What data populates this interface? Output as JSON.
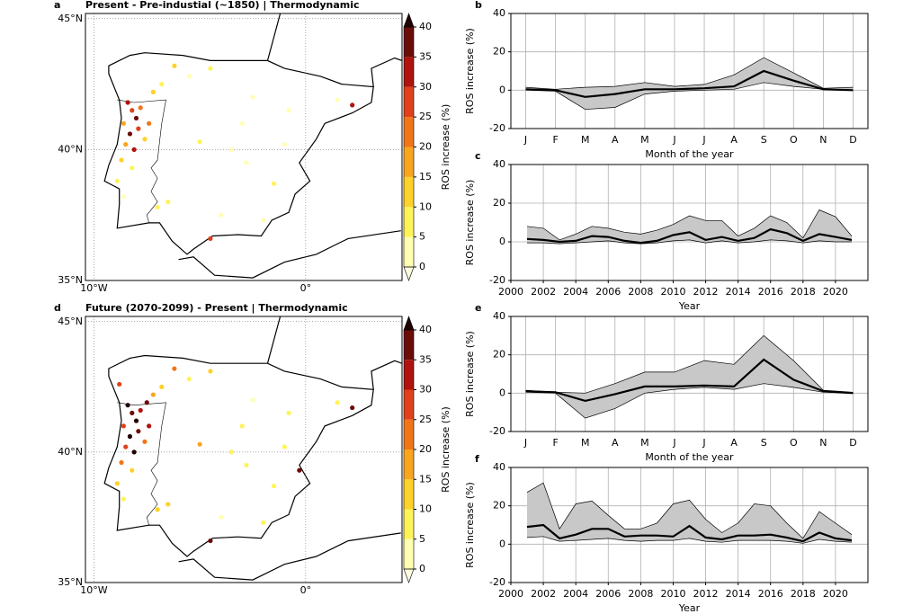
{
  "chart_data": [
    {
      "type": "map",
      "panel": "a",
      "title": "Present - Pre-industial (~1850) | Thermodynamic",
      "points": {
        "lon": [
          -8.4,
          -8.2,
          -8.0,
          -7.8,
          -8.6,
          -8.3,
          -7.9,
          -8.5,
          -8.1,
          -7.6,
          -8.7,
          -8.2,
          -7.4,
          -8.9,
          -8.6,
          -7.2,
          -6.8,
          -6.2,
          -5.5,
          -4.5,
          -3.5,
          -2.8,
          -1.5,
          -0.8,
          -6.5,
          -4.0,
          -2.0,
          -5.0,
          -3.0,
          -7.0,
          -4.5,
          -1.0,
          1.5,
          2.2,
          -2.5
        ],
        "lat": [
          41.8,
          41.5,
          41.2,
          41.6,
          41.0,
          40.6,
          40.8,
          40.2,
          40.0,
          40.4,
          39.6,
          39.3,
          41.0,
          38.8,
          38.2,
          42.2,
          42.5,
          43.2,
          42.8,
          43.1,
          40.0,
          39.5,
          38.7,
          41.5,
          38.0,
          37.5,
          37.3,
          40.3,
          41.0,
          37.8,
          36.6,
          40.2,
          41.9,
          41.7,
          42.0
        ],
        "values": [
          32,
          28,
          38,
          22,
          18,
          36,
          25,
          15,
          30,
          12,
          14,
          8,
          20,
          6,
          4,
          10,
          8,
          12,
          4,
          6,
          3,
          4,
          5,
          3,
          8,
          2,
          4,
          9,
          3,
          6,
          27,
          4,
          3,
          30,
          2
        ]
      },
      "xlim": [
        -10.4,
        4.55
      ],
      "ylim": [
        35,
        45.2
      ],
      "xticks": [
        {
          "value": -10,
          "label": "10°W"
        },
        {
          "value": 0,
          "label": "0°"
        }
      ],
      "yticks": [
        {
          "value": 35,
          "label": "35°N"
        },
        {
          "value": 40,
          "label": "40°N"
        },
        {
          "value": 45,
          "label": "45°N"
        }
      ],
      "colorbar": {
        "label": "ROS increase (%)",
        "ticks": [
          0,
          5,
          10,
          15,
          20,
          25,
          30,
          35,
          40
        ],
        "colors": [
          "#ffffb2",
          "#fff35a",
          "#fdd22a",
          "#f9a51e",
          "#f2751a",
          "#e0401a",
          "#b0120f",
          "#6b0c08"
        ],
        "under_color": "#ffffe0",
        "over_color": "#200000"
      }
    },
    {
      "type": "line",
      "panel": "b",
      "categories": [
        "J",
        "F",
        "M",
        "A",
        "M",
        "J",
        "J",
        "A",
        "S",
        "O",
        "N",
        "D"
      ],
      "values": [
        0.5,
        0,
        -3.5,
        -2,
        0.5,
        0.5,
        1,
        2,
        10,
        5,
        0.5,
        0
      ],
      "upper": [
        1.5,
        0.5,
        1.5,
        2,
        4,
        2,
        3,
        8,
        17,
        9,
        1,
        1.5
      ],
      "lower": [
        0,
        -0.5,
        -10,
        -9,
        -2,
        -0.5,
        0,
        0.5,
        4,
        2,
        0.5,
        0
      ],
      "ylim": [
        -20,
        40
      ],
      "yticks": [
        -20,
        0,
        20,
        40
      ],
      "ylabel": "ROS increase (%)",
      "xlabel": "Month of the year",
      "grid": true,
      "color": "#000000",
      "band_color": "#c8c8c8"
    },
    {
      "type": "line",
      "panel": "c",
      "x": [
        2001,
        2002,
        2003,
        2004,
        2005,
        2006,
        2007,
        2008,
        2009,
        2010,
        2011,
        2012,
        2013,
        2014,
        2015,
        2016,
        2017,
        2018,
        2019,
        2020,
        2021
      ],
      "values": [
        1.5,
        1,
        0,
        0.5,
        3,
        2.5,
        0.5,
        -0.5,
        0.5,
        3.5,
        5,
        1,
        2.5,
        0.5,
        2,
        6.5,
        4.5,
        0.5,
        4,
        2.5,
        1
      ],
      "upper": [
        8,
        7,
        1,
        4,
        8,
        7,
        5,
        4,
        6,
        9,
        13.5,
        11,
        11,
        3,
        7,
        13.5,
        10,
        2,
        16.5,
        13,
        3
      ],
      "lower": [
        -0.5,
        -0.5,
        -1,
        -0.5,
        0,
        0.5,
        -0.5,
        -1,
        -0.5,
        0.5,
        1,
        -0.5,
        0.5,
        -0.5,
        0,
        1,
        0.5,
        -0.5,
        0.5,
        0,
        0
      ],
      "xlim": [
        2000,
        2022
      ],
      "xticks": [
        2000,
        2002,
        2004,
        2006,
        2008,
        2010,
        2012,
        2014,
        2016,
        2018,
        2020
      ],
      "ylim": [
        -20,
        40
      ],
      "yticks": [
        -20,
        0,
        20,
        40
      ],
      "ylabel": "ROS increase (%)",
      "xlabel": "Year",
      "grid": true,
      "color": "#000000",
      "band_color": "#c8c8c8"
    },
    {
      "type": "map",
      "panel": "d",
      "title": "Future (2070-2099) - Present | Thermodynamic",
      "points": {
        "lon": [
          -8.4,
          -8.2,
          -8.0,
          -7.8,
          -8.6,
          -8.3,
          -7.9,
          -8.5,
          -8.1,
          -7.6,
          -8.7,
          -8.2,
          -7.4,
          -8.9,
          -8.6,
          -7.2,
          -6.8,
          -6.2,
          -5.5,
          -4.5,
          -3.5,
          -2.8,
          -1.5,
          -0.8,
          -6.5,
          -4.0,
          -2.0,
          -5.0,
          -3.0,
          -7.0,
          -4.5,
          -1.0,
          1.5,
          2.2,
          -2.5,
          -0.3,
          -7.5,
          -8.8
        ],
        "lat": [
          41.8,
          41.5,
          41.2,
          41.6,
          41.0,
          40.6,
          40.8,
          40.2,
          40.0,
          40.4,
          39.6,
          39.3,
          41.0,
          38.8,
          38.2,
          42.2,
          42.5,
          43.2,
          42.8,
          43.1,
          40.0,
          39.5,
          38.7,
          41.5,
          38.0,
          37.5,
          37.3,
          40.3,
          41.0,
          37.8,
          36.6,
          40.2,
          41.9,
          41.7,
          42.0,
          39.3,
          41.9,
          42.6
        ],
        "values": [
          42,
          38,
          45,
          33,
          28,
          40,
          36,
          26,
          41,
          20,
          22,
          14,
          30,
          10,
          8,
          18,
          14,
          20,
          8,
          12,
          6,
          8,
          9,
          6,
          14,
          4,
          8,
          16,
          6,
          10,
          35,
          7,
          5,
          38,
          4,
          36,
          39,
          25
        ]
      },
      "xlim": [
        -10.4,
        4.55
      ],
      "ylim": [
        35,
        45.2
      ],
      "xticks": [
        {
          "value": -10,
          "label": "10°W"
        },
        {
          "value": 0,
          "label": "0°"
        }
      ],
      "yticks": [
        {
          "value": 35,
          "label": "35°N"
        },
        {
          "value": 40,
          "label": "40°N"
        },
        {
          "value": 45,
          "label": "45°N"
        }
      ],
      "colorbar": {
        "label": "ROS increase (%)",
        "ticks": [
          0,
          5,
          10,
          15,
          20,
          25,
          30,
          35,
          40
        ],
        "colors": [
          "#ffffb2",
          "#fff35a",
          "#fdd22a",
          "#f9a51e",
          "#f2751a",
          "#e0401a",
          "#b0120f",
          "#6b0c08"
        ],
        "under_color": "#ffffe0",
        "over_color": "#200000"
      }
    },
    {
      "type": "line",
      "panel": "e",
      "categories": [
        "J",
        "F",
        "M",
        "A",
        "M",
        "J",
        "J",
        "A",
        "S",
        "O",
        "N",
        "D"
      ],
      "values": [
        1,
        0.5,
        -4,
        -0.5,
        3.5,
        3.5,
        4,
        3.5,
        17.5,
        7,
        1,
        0
      ],
      "upper": [
        1.5,
        0.5,
        0,
        5,
        11,
        11,
        17,
        15,
        30,
        17,
        1.5,
        0.5
      ],
      "lower": [
        0.5,
        0,
        -13,
        -8,
        0,
        2,
        3,
        2,
        5,
        3,
        0.5,
        0
      ],
      "ylim": [
        -20,
        40
      ],
      "yticks": [
        -20,
        0,
        20,
        40
      ],
      "ylabel": "ROS increase (%)",
      "xlabel": "Month of the year",
      "grid": true,
      "color": "#000000",
      "band_color": "#c8c8c8"
    },
    {
      "type": "line",
      "panel": "f",
      "x": [
        2001,
        2002,
        2003,
        2004,
        2005,
        2006,
        2007,
        2008,
        2009,
        2010,
        2011,
        2012,
        2013,
        2014,
        2015,
        2016,
        2017,
        2018,
        2019,
        2020,
        2021
      ],
      "values": [
        9,
        10,
        3,
        5,
        8,
        8,
        4,
        4.5,
        4.5,
        4,
        9.5,
        3.5,
        2.5,
        4.5,
        4.5,
        5,
        3.5,
        1.5,
        6,
        3,
        2
      ],
      "upper": [
        27,
        32,
        8,
        21,
        22.5,
        15,
        8,
        8,
        11,
        21,
        23,
        13,
        6,
        11,
        21,
        20,
        11,
        3,
        17,
        11,
        5
      ],
      "lower": [
        3.5,
        4,
        1.5,
        2,
        2.5,
        3,
        2,
        1.5,
        2,
        2,
        3,
        1.5,
        1,
        2,
        2,
        2,
        1.5,
        0.5,
        2.5,
        1.5,
        1
      ],
      "xlim": [
        2000,
        2022
      ],
      "xticks": [
        2000,
        2002,
        2004,
        2006,
        2008,
        2010,
        2012,
        2014,
        2016,
        2018,
        2020
      ],
      "ylim": [
        -20,
        40
      ],
      "yticks": [
        -20,
        0,
        20,
        40
      ],
      "ylabel": "ROS increase (%)",
      "xlabel": "Year",
      "grid": true,
      "color": "#000000",
      "band_color": "#c8c8c8"
    }
  ]
}
